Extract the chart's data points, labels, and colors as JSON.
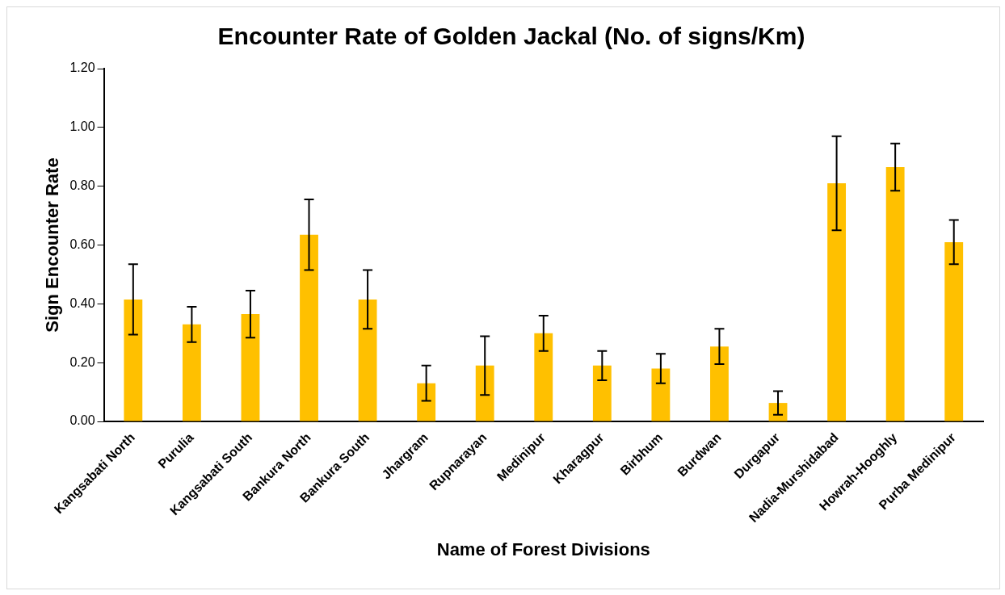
{
  "chart_data": {
    "type": "bar",
    "title": "Encounter Rate of Golden Jackal (No. of signs/Km)",
    "xlabel": "Name of Forest Divisions",
    "ylabel": "Sign Encounter Rate",
    "categories": [
      "Kangsabati North",
      "Purulia",
      "Kangsabati South",
      "Bankura North",
      "Bankura South",
      "Jhargram",
      "Rupnarayan",
      "Medinipur",
      "Kharagpur",
      "Birbhum",
      "Burdwan",
      "Durgapur",
      "Nadia-Murshidabad",
      "Howrah-Hooghly",
      "Purba Medinipur"
    ],
    "values": [
      0.415,
      0.33,
      0.365,
      0.635,
      0.415,
      0.13,
      0.19,
      0.3,
      0.19,
      0.18,
      0.255,
      0.063,
      0.81,
      0.865,
      0.61
    ],
    "errors": [
      0.12,
      0.06,
      0.08,
      0.12,
      0.1,
      0.06,
      0.1,
      0.06,
      0.05,
      0.05,
      0.06,
      0.04,
      0.16,
      0.08,
      0.075
    ],
    "color": "#ffc000",
    "ylim": [
      0,
      1.2
    ],
    "yticks": [
      {
        "value": 0,
        "label": "0.00"
      },
      {
        "value": 0.2,
        "label": "0.20"
      },
      {
        "value": 0.4,
        "label": "0.40"
      },
      {
        "value": 0.6,
        "label": "0.60"
      },
      {
        "value": 0.8,
        "label": "0.80"
      },
      {
        "value": 1,
        "label": "1.00"
      },
      {
        "value": 1.2,
        "label": "1.20"
      }
    ],
    "grid": false,
    "legend": false
  }
}
